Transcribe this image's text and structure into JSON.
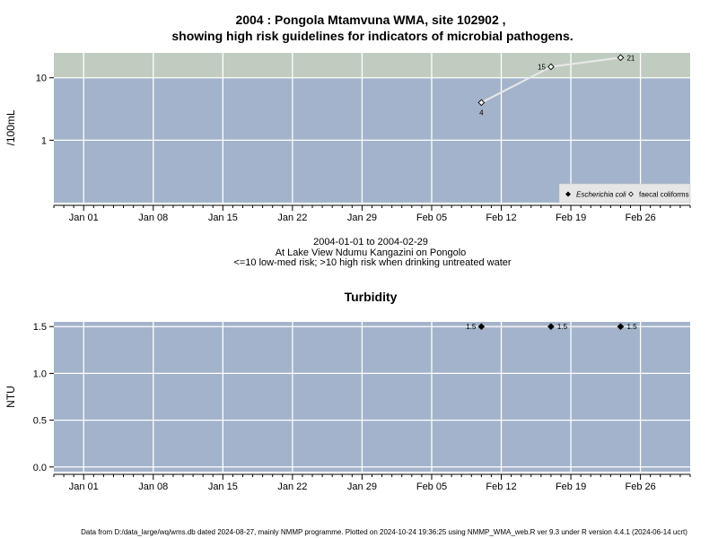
{
  "title_line1": "2004 : Pongola Mtamvuna WMA, site 102902 ,",
  "title_line2": "showing high risk guidelines for indicators of microbial pathogens.",
  "subtitle_lines": [
    "2004-01-01 to 2004-02-29",
    "At Lake View Ndumu Kangazini on Pongolo",
    "<=10 low-med risk; >10 high risk when drinking untreated water"
  ],
  "footer": "Data from D:/data_large/wq/wms.db dated 2024-08-27, mainly NMMP programme. Plotted on 2024-10-24 19:36:25 using NMMP_WMA_web.R ver 9.3 under R version 4.4.1 (2024-06-14 ucrt)",
  "colors": {
    "panel_bg": "#a3b3cb",
    "high_risk_band": "#c1ccc0",
    "grid": "#ffffff",
    "series_line": "#e8e8e8",
    "legend_bg": "#e6e6e6"
  },
  "chart_data": [
    {
      "type": "line",
      "title": "",
      "ylabel": "/100mL",
      "y_scale": "log10",
      "ylim": [
        0.1,
        25
      ],
      "high_risk_threshold": 10,
      "x_ticks": [
        "Jan 01",
        "Jan 08",
        "Jan 15",
        "Jan 22",
        "Jan 29",
        "Feb 05",
        "Feb 12",
        "Feb 19",
        "Feb 26"
      ],
      "x_tick_dates": [
        "2004-01-01",
        "2004-01-08",
        "2004-01-15",
        "2004-01-22",
        "2004-01-29",
        "2004-02-05",
        "2004-02-12",
        "2004-02-19",
        "2004-02-26"
      ],
      "xlim": [
        "2003-12-29",
        "2004-03-02"
      ],
      "y_ticks": [
        1,
        10
      ],
      "y_tick_labels": [
        "1",
        "10"
      ],
      "legend_position": "bottom-right",
      "legend": [
        "Escherichia coli",
        "faecal coliforms"
      ],
      "series": [
        {
          "name": "faecal coliforms",
          "marker": "open-diamond",
          "x": [
            "2004-02-10",
            "2004-02-17",
            "2004-02-24"
          ],
          "y": [
            4,
            15,
            21
          ],
          "labels": [
            "4",
            "15",
            "21"
          ]
        }
      ]
    },
    {
      "type": "line",
      "title": "Turbidity",
      "ylabel": "NTU",
      "ylim": [
        -0.05,
        1.55
      ],
      "x_ticks": [
        "Jan 01",
        "Jan 08",
        "Jan 15",
        "Jan 22",
        "Jan 29",
        "Feb 05",
        "Feb 12",
        "Feb 19",
        "Feb 26"
      ],
      "x_tick_dates": [
        "2004-01-01",
        "2004-01-08",
        "2004-01-15",
        "2004-01-22",
        "2004-01-29",
        "2004-02-05",
        "2004-02-12",
        "2004-02-19",
        "2004-02-26"
      ],
      "xlim": [
        "2003-12-29",
        "2004-03-02"
      ],
      "y_ticks": [
        0,
        0.5,
        1,
        1.5
      ],
      "y_tick_labels": [
        "0.0",
        "0.5",
        "1.0",
        "1.5"
      ],
      "series": [
        {
          "marker": "filled-diamond",
          "x": [
            "2004-02-10",
            "2004-02-17",
            "2004-02-24"
          ],
          "y": [
            1.5,
            1.5,
            1.5
          ],
          "labels": [
            "1.5",
            "1.5",
            "1.5"
          ]
        }
      ]
    }
  ]
}
